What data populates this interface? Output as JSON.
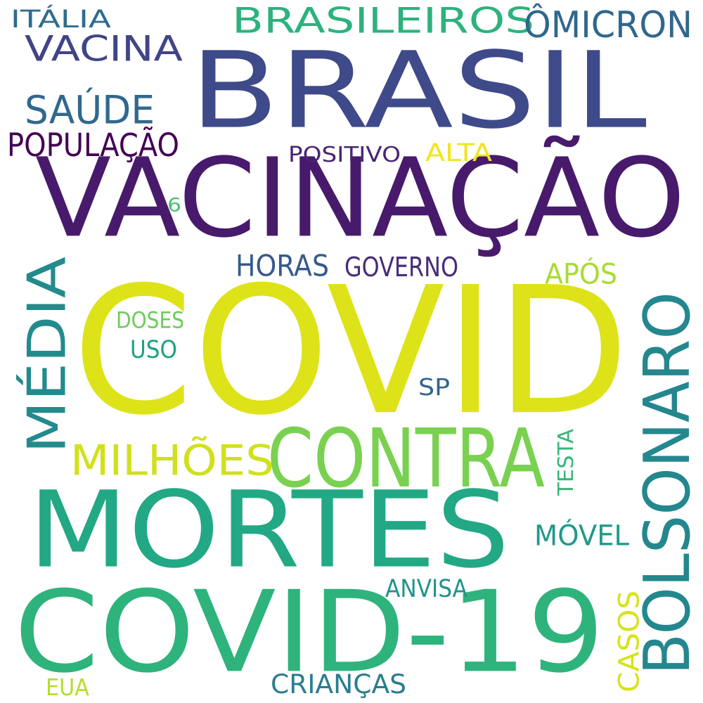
{
  "words": [
    {
      "key": "covid",
      "text": "COVID",
      "color": "#dde318",
      "vertical": false
    },
    {
      "key": "vacinacao",
      "text": "VACINAÇÃO",
      "color": "#481a6c",
      "vertical": false
    },
    {
      "key": "brasil",
      "text": "BRASIL",
      "color": "#3e4a89",
      "vertical": false
    },
    {
      "key": "mortes",
      "text": "MORTES",
      "color": "#22a884",
      "vertical": false
    },
    {
      "key": "covid19",
      "text": "COVID-19",
      "color": "#2eb37c",
      "vertical": false
    },
    {
      "key": "bolsonaro",
      "text": "BOLSONARO",
      "color": "#24878e",
      "vertical": true
    },
    {
      "key": "contra",
      "text": "CONTRA",
      "color": "#7ad151",
      "vertical": false
    },
    {
      "key": "media",
      "text": "MÉDIA",
      "color": "#238a8d",
      "vertical": true
    },
    {
      "key": "brasileiros",
      "text": "BRASILEIROS",
      "color": "#2db27d",
      "vertical": false
    },
    {
      "key": "omicron",
      "text": "ÔMICRON",
      "color": "#30678d",
      "vertical": false
    },
    {
      "key": "vacina",
      "text": "VACINA",
      "color": "#414487",
      "vertical": false
    },
    {
      "key": "milhoes",
      "text": "MILHÕES",
      "color": "#d0e11c",
      "vertical": false
    },
    {
      "key": "saude",
      "text": "SAÚDE",
      "color": "#31688e",
      "vertical": false
    },
    {
      "key": "populacao",
      "text": "POPULAÇÃO",
      "color": "#440154",
      "vertical": false
    },
    {
      "key": "horas",
      "text": "HORAS",
      "color": "#375a8c",
      "vertical": false
    },
    {
      "key": "governo",
      "text": "GOVERNO",
      "color": "#472d7b",
      "vertical": false
    },
    {
      "key": "italia",
      "text": "ITÁLIA",
      "color": "#2f6c8e",
      "vertical": false
    },
    {
      "key": "movel",
      "text": "MÓVEL",
      "color": "#1f9a8a",
      "vertical": false
    },
    {
      "key": "apos",
      "text": "APÓS",
      "color": "#a8db34",
      "vertical": false
    },
    {
      "key": "alta",
      "text": "ALTA",
      "color": "#f1e51d",
      "vertical": false
    },
    {
      "key": "criancas",
      "text": "CRIANÇAS",
      "color": "#287d8e",
      "vertical": false
    },
    {
      "key": "casos",
      "text": "CASOS",
      "color": "#d8e219",
      "vertical": true
    },
    {
      "key": "positivo",
      "text": "POSITIVO",
      "color": "#482475",
      "vertical": false
    },
    {
      "key": "uso",
      "text": "USO",
      "color": "#1fa088",
      "vertical": false
    },
    {
      "key": "testa",
      "text": "TESTA",
      "color": "#35b779",
      "vertical": true
    },
    {
      "key": "doses",
      "text": "DOSES",
      "color": "#6ccd5a",
      "vertical": false
    },
    {
      "key": "anvisa",
      "text": "ANVISA",
      "color": "#20928c",
      "vertical": false
    },
    {
      "key": "sp",
      "text": "SP",
      "color": "#33638d",
      "vertical": false
    },
    {
      "key": "eua",
      "text": "EUA",
      "color": "#b5de2b",
      "vertical": false
    },
    {
      "key": "seis",
      "text": "6",
      "color": "#4ac16d",
      "vertical": false
    }
  ]
}
